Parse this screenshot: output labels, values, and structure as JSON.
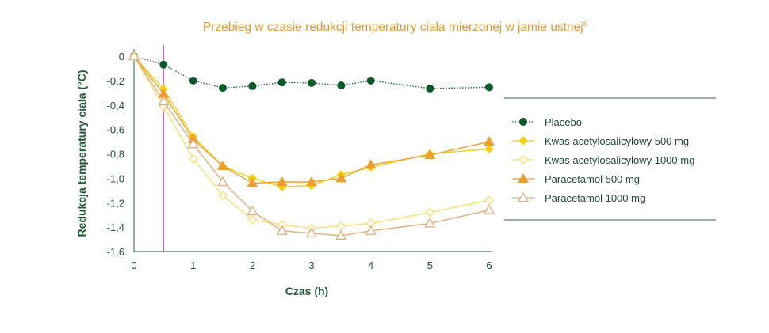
{
  "chart_data": {
    "type": "line",
    "title": "Przebieg w czasie redukcji temperatury ciała mierzonej w jamie ustnej",
    "title_superscript": "6",
    "xlabel": "Czas (h)",
    "ylabel": "Redukcja temperatury ciała (°C)",
    "xlim": [
      0,
      6
    ],
    "ylim": [
      -1.6,
      0
    ],
    "xticks": [
      "0",
      "1",
      "2",
      "3",
      "4",
      "5",
      "6"
    ],
    "yticks": [
      "0",
      "-0,2",
      "-0,4",
      "-0,6",
      "-0,8",
      "-1,0",
      "-1,2",
      "-1,4",
      "-1,6"
    ],
    "x": [
      0,
      0.5,
      1,
      1.5,
      2,
      2.5,
      3,
      3.5,
      4,
      5,
      6
    ],
    "reference_line_x": 0.5,
    "reference_line_color": "#c86ab8",
    "grid": false,
    "legend_position": "right",
    "series": [
      {
        "name": "Placebo",
        "color": "#0b5a2a",
        "marker": "circle-filled",
        "line": "dotted",
        "values": [
          0,
          -0.07,
          -0.2,
          -0.26,
          -0.245,
          -0.215,
          -0.22,
          -0.24,
          -0.2,
          -0.265,
          -0.255
        ]
      },
      {
        "name": "Kwas acetylosalicylowy 500 mg",
        "color": "#f5cf10",
        "marker": "diamond-filled",
        "line": "solid",
        "values": [
          0,
          -0.27,
          -0.66,
          -0.9,
          -1.0,
          -1.07,
          -1.06,
          -0.97,
          -0.91,
          -0.8,
          -0.76
        ]
      },
      {
        "name": "Kwas acetylosalicylowy 1000 mg",
        "color": "#f6df70",
        "marker": "diamond-open",
        "line": "solid",
        "values": [
          0,
          -0.41,
          -0.84,
          -1.14,
          -1.34,
          -1.38,
          -1.41,
          -1.39,
          -1.37,
          -1.28,
          -1.18
        ]
      },
      {
        "name": "Paracetamol 500 mg",
        "color": "#ee9e2e",
        "marker": "triangle-filled",
        "line": "solid",
        "values": [
          0,
          -0.31,
          -0.68,
          -0.9,
          -1.04,
          -1.03,
          -1.03,
          -1.0,
          -0.89,
          -0.81,
          -0.7
        ]
      },
      {
        "name": "Paracetamol 1000 mg",
        "color": "#e2ad7c",
        "marker": "triangle-open",
        "line": "solid",
        "values": [
          0,
          -0.37,
          -0.72,
          -1.03,
          -1.27,
          -1.43,
          -1.45,
          -1.47,
          -1.43,
          -1.37,
          -1.26
        ]
      }
    ]
  }
}
